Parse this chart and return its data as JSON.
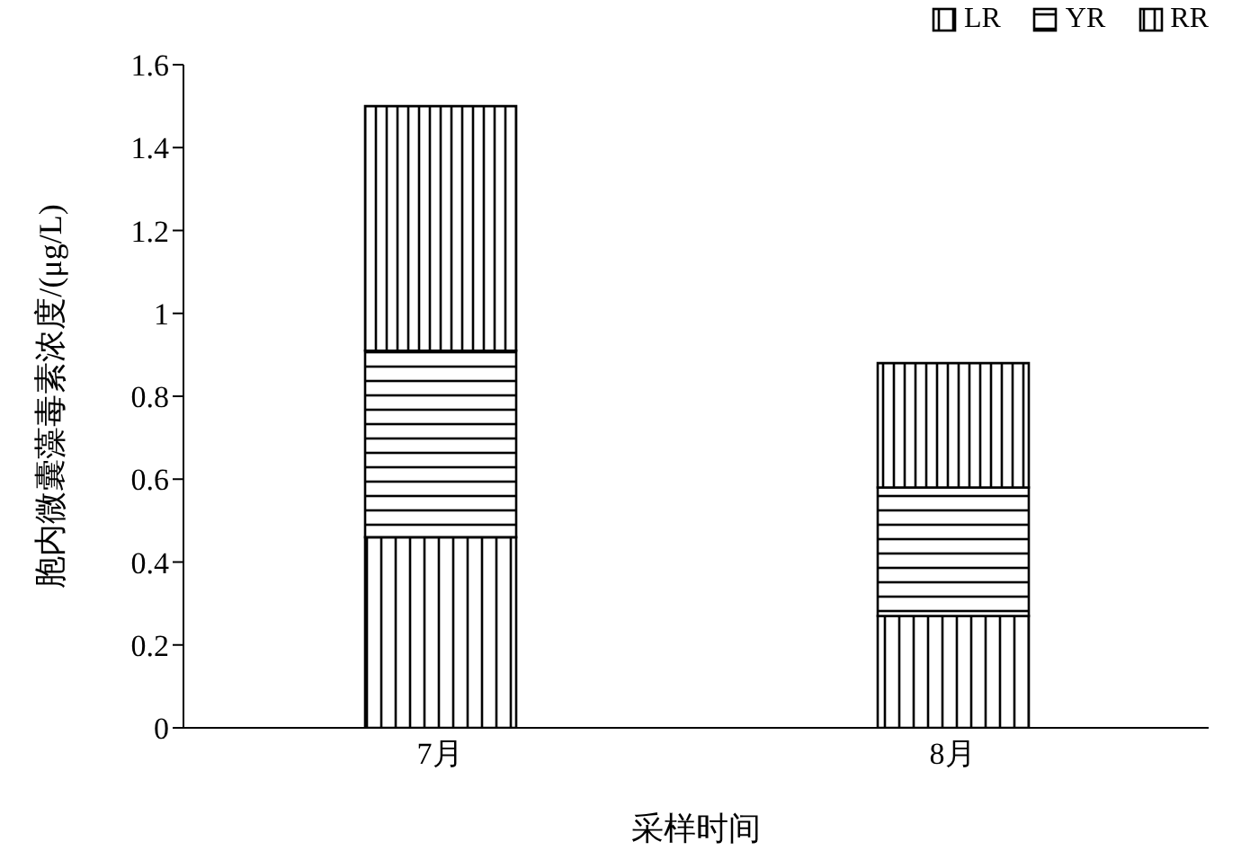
{
  "chart_data": {
    "type": "bar",
    "stacked": true,
    "xlabel": "采样时间",
    "ylabel": "胞内微囊藻毒素浓度/(μg/L)",
    "categories": [
      "7月",
      "8月"
    ],
    "series": [
      {
        "name": "LR",
        "color": "#000000",
        "values": [
          0.46,
          0.27
        ]
      },
      {
        "name": "YR",
        "color": "#000000",
        "values": [
          0.45,
          0.31
        ]
      },
      {
        "name": "RR",
        "color": "#000000",
        "values": [
          0.59,
          0.3
        ]
      }
    ],
    "ylim": [
      0,
      1.6
    ],
    "yticks": [
      0,
      0.2,
      0.4,
      0.6,
      0.8,
      1,
      1.2,
      1.4,
      1.6
    ],
    "grid": false,
    "legend": "top right"
  }
}
